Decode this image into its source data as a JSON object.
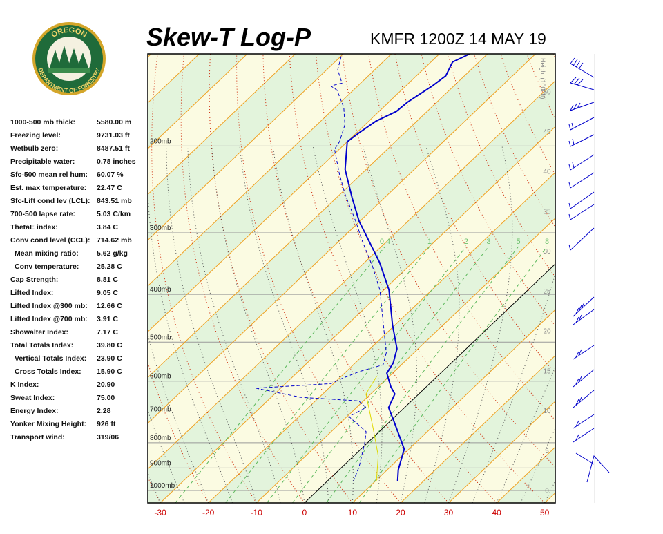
{
  "header": {
    "title": "Skew-T Log-P",
    "station": "KMFR 1200Z 14 MAY 19"
  },
  "logo": {
    "top": "OREGON",
    "bottom": "DEPARTMENT OF FORESTRY"
  },
  "indices": [
    [
      "1000-500 mb thick:",
      "5580.00 m"
    ],
    [
      "Freezing level:",
      "9731.03 ft"
    ],
    [
      "Wetbulb zero:",
      "8487.51 ft"
    ],
    [
      "Precipitable water:",
      "0.78 inches"
    ],
    [
      "Sfc-500 mean rel hum:",
      "60.07 %"
    ],
    [
      "Est. max temperature:",
      "22.47 C"
    ],
    [
      "Sfc-Lift cond lev (LCL):",
      "843.51 mb"
    ],
    [
      "700-500 lapse rate:",
      "5.03 C/km"
    ],
    [
      "ThetaE index:",
      "3.84 C"
    ],
    [
      "Conv cond level (CCL):",
      "714.62 mb"
    ],
    [
      "Mean mixing ratio:",
      "5.62 g/kg"
    ],
    [
      "Conv temperature:",
      "25.28 C"
    ],
    [
      "Cap Strength:",
      "8.81 C"
    ],
    [
      "Lifted Index:",
      "9.05 C"
    ],
    [
      "Lifted Index @300 mb:",
      "12.66 C"
    ],
    [
      "Lifted Index @700 mb:",
      "3.91 C"
    ],
    [
      "Showalter Index:",
      "7.17 C"
    ],
    [
      "Total Totals Index:",
      "39.80 C"
    ],
    [
      "Vertical Totals Index:",
      "23.90 C"
    ],
    [
      "Cross Totals Index:",
      "15.90 C"
    ],
    [
      "K Index:",
      "20.90"
    ],
    [
      "Sweat Index:",
      "75.00"
    ],
    [
      "Energy Index:",
      "2.28"
    ],
    [
      "Yonker Mixing Height:",
      "926 ft"
    ],
    [
      "Transport wind:",
      "319/06"
    ]
  ],
  "chart_data": {
    "type": "skewt",
    "xlim": [
      -32.6,
      52.2
    ],
    "xticks": [
      -30,
      -20,
      -10,
      0,
      10,
      20,
      30,
      40,
      50
    ],
    "ylim": [
      1060,
      130
    ],
    "log_y": true,
    "yticks": [
      {
        "value": 1000,
        "label": "1000mb"
      },
      {
        "value": 900,
        "label": "900mb"
      },
      {
        "value": 800,
        "label": "800mb"
      },
      {
        "value": 700,
        "label": "700mb"
      },
      {
        "value": 600,
        "label": "600mb"
      },
      {
        "value": 500,
        "label": "500mb"
      },
      {
        "value": 400,
        "label": "400mb"
      },
      {
        "value": 300,
        "label": "300mb"
      },
      {
        "value": 200,
        "label": "200mb"
      }
    ],
    "y2label": "Height (1000ft)",
    "y2lim": [
      -1.6,
      54.7
    ],
    "y2ticks": [
      0,
      5,
      10,
      15,
      20,
      25,
      30,
      35,
      40,
      45,
      50
    ],
    "mixing_ratios": [
      0.4,
      1,
      2,
      3,
      5,
      8
    ],
    "series": [
      {
        "color": "#0000cc",
        "line_style": "solid",
        "x": [
          14.7,
          12.3,
          9.0,
          0.8,
          -3.3,
          -5.0,
          -7.4,
          -11.2,
          -12.1,
          -14.4,
          -20.6,
          -28.9,
          -36.8,
          -43.5,
          -50.2,
          -56.9,
          -64.4,
          -70.0,
          -69.5,
          -68.5,
          -66.4,
          -66.1,
          -64.5,
          -63.9,
          -65.5,
          -63.7
        ],
        "values": [
          959,
          908,
          824,
          724,
          679,
          637,
          616,
          578,
          551,
          516,
          461,
          392,
          345,
          313,
          284,
          254,
          223,
          196,
          188,
          178,
          170,
          163,
          151,
          144,
          135,
          130
        ]
      },
      {
        "color": "#0000cc",
        "line_style": "dashed",
        "x": [
          5.5,
          3.4,
          -0.7,
          -2.7,
          -9.6,
          -8.0,
          -11.0,
          -23.9,
          -35.2,
          -20.5,
          -19.4,
          -17.3,
          -13.8,
          -15.8,
          -22.5,
          -30.8,
          -37.5,
          -44.9,
          -50.9,
          -59.1,
          -64.8,
          -71.0,
          -71.6,
          -74.2,
          -78.2,
          -83.4,
          -85.6,
          -83.9,
          -87.7,
          -90.3
        ],
        "values": [
          959,
          893,
          798,
          760,
          708,
          679,
          658,
          647,
          620,
          607,
          593,
          574,
          556,
          525,
          461,
          392,
          351,
          313,
          284,
          250,
          227,
          203,
          196,
          181,
          167,
          154,
          151,
          149,
          140,
          130
        ]
      },
      {
        "color": "#e0d800",
        "line_style": "solid",
        "x": [
          10.3,
          5.1,
          -2.0,
          -11.0,
          -12.6
        ],
        "values": [
          959,
          851,
          748,
          637,
          587
        ]
      }
    ]
  }
}
